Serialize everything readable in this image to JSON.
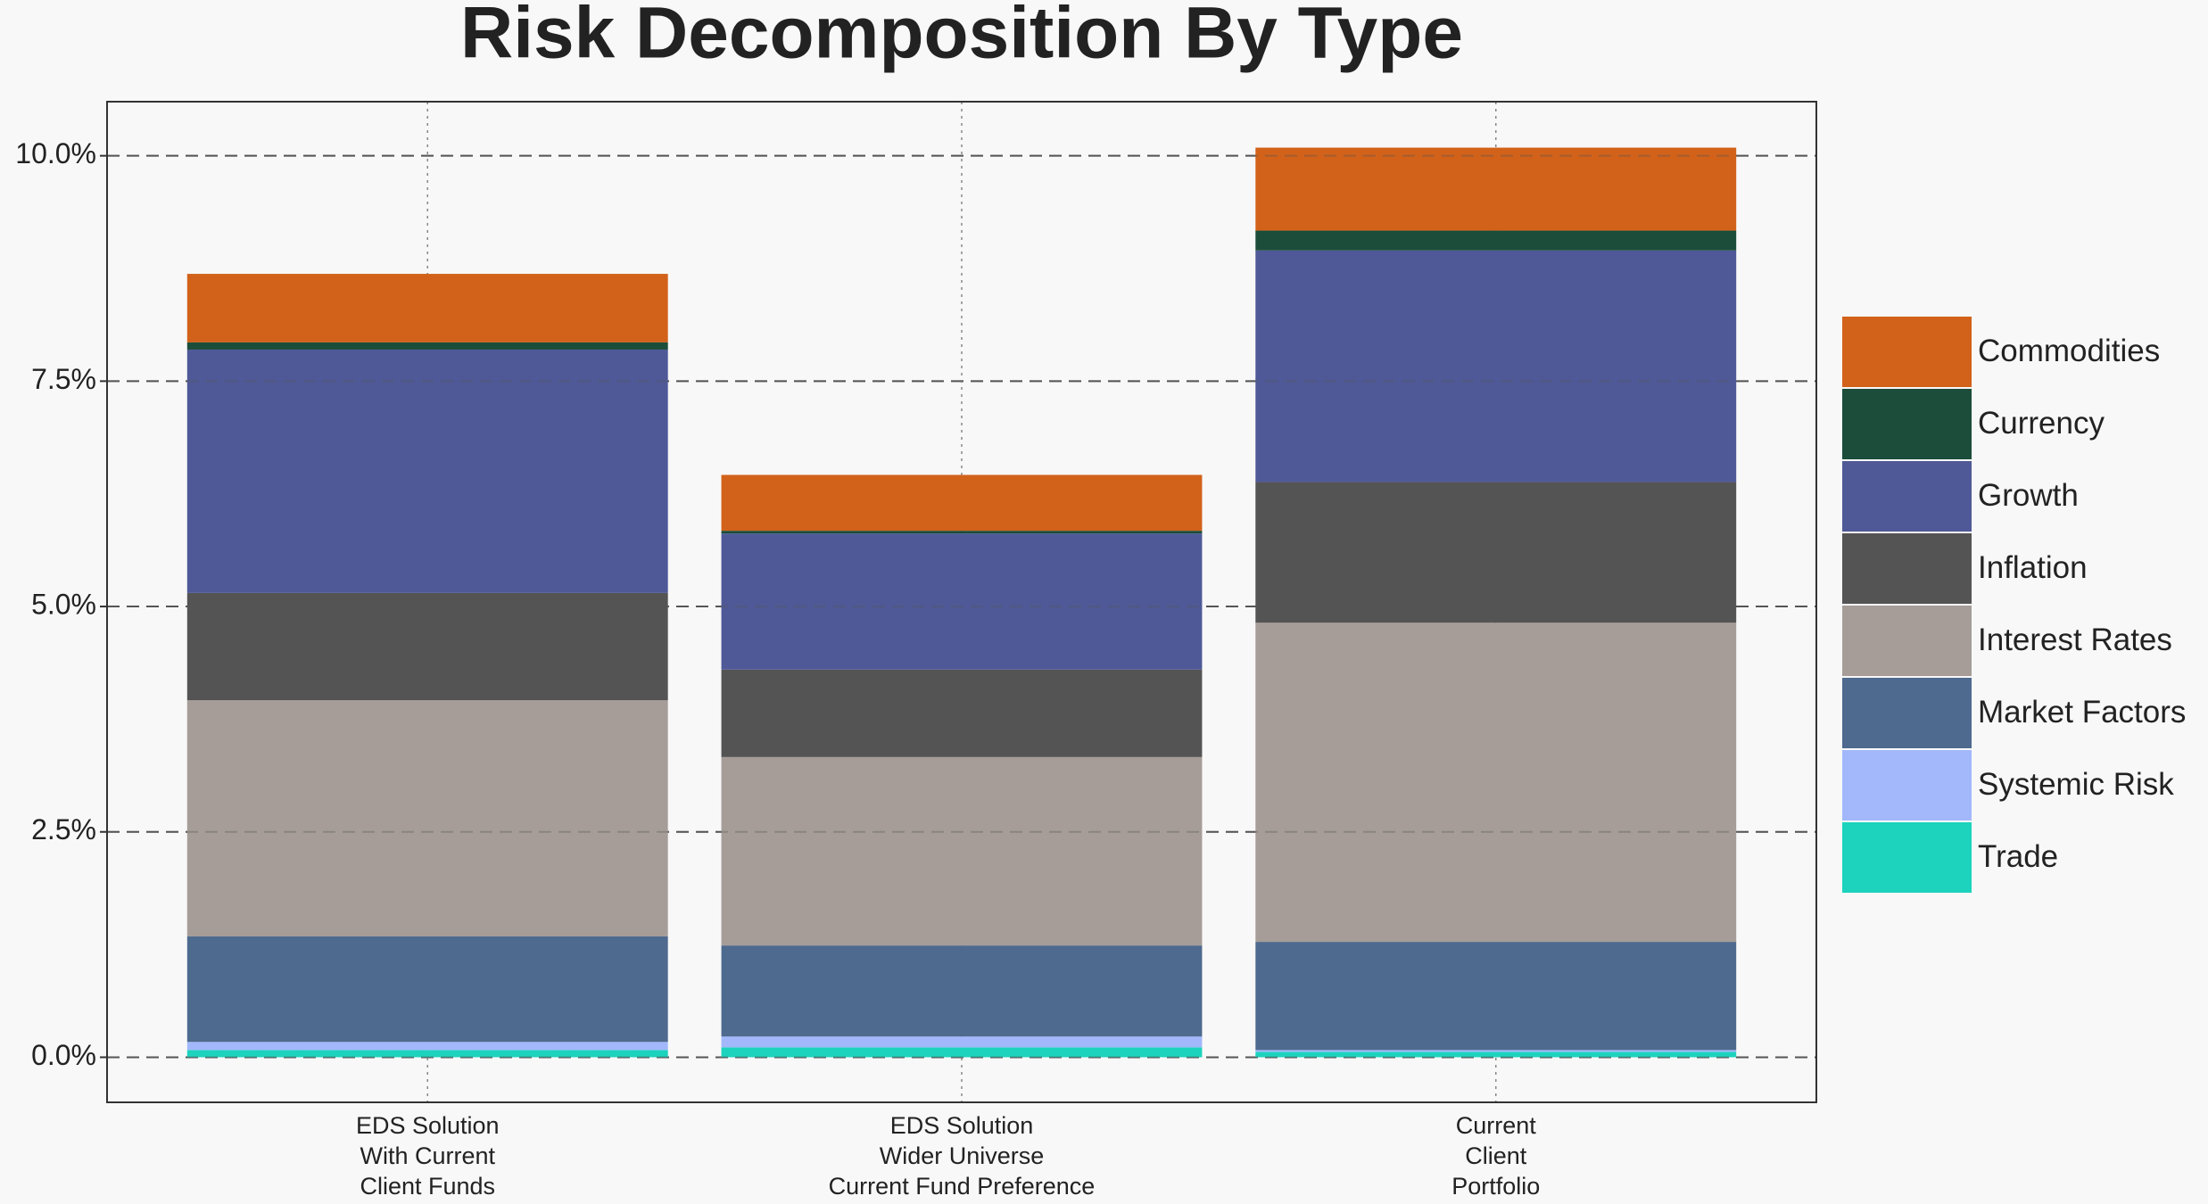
{
  "chart_data": {
    "type": "stacked-bar",
    "title": "Risk Decomposition By Type",
    "categories": [
      [
        "EDS Solution",
        "With Current",
        "Client Funds"
      ],
      [
        "EDS Solution",
        "Wider Universe",
        "Current Fund Preference"
      ],
      [
        "Current",
        "Client",
        "Portfolio"
      ]
    ],
    "series": [
      {
        "name": "Trade",
        "color": "#1dd3bd",
        "values": [
          0.08,
          0.11,
          0.06
        ]
      },
      {
        "name": "Systemic Risk",
        "color": "#a2b8fb",
        "values": [
          0.09,
          0.12,
          0.02
        ]
      },
      {
        "name": "Market Factors",
        "color": "#4e6a8f",
        "values": [
          1.17,
          1.01,
          1.2
        ]
      },
      {
        "name": "Interest Rates",
        "color": "#a69d98",
        "values": [
          2.62,
          2.09,
          3.54
        ]
      },
      {
        "name": "Inflation",
        "color": "#545454",
        "values": [
          1.19,
          0.97,
          1.56
        ]
      },
      {
        "name": "Growth",
        "color": "#4f5997",
        "values": [
          2.7,
          1.51,
          2.57
        ]
      },
      {
        "name": "Currency",
        "color": "#1b4d3a",
        "values": [
          0.08,
          0.03,
          0.22
        ]
      },
      {
        "name": "Commodities",
        "color": "#d2621a",
        "values": [
          0.76,
          0.62,
          0.92
        ]
      }
    ],
    "ylim": [
      -0.5,
      10.6
    ],
    "yticks": [
      {
        "value": 0,
        "label": "0.0%"
      },
      {
        "value": 2.5,
        "label": "2.5%"
      },
      {
        "value": 5,
        "label": "5.0%"
      },
      {
        "value": 7.5,
        "label": "7.5%"
      },
      {
        "value": 10,
        "label": "10.0%"
      }
    ],
    "grid": true,
    "legend": "right"
  }
}
